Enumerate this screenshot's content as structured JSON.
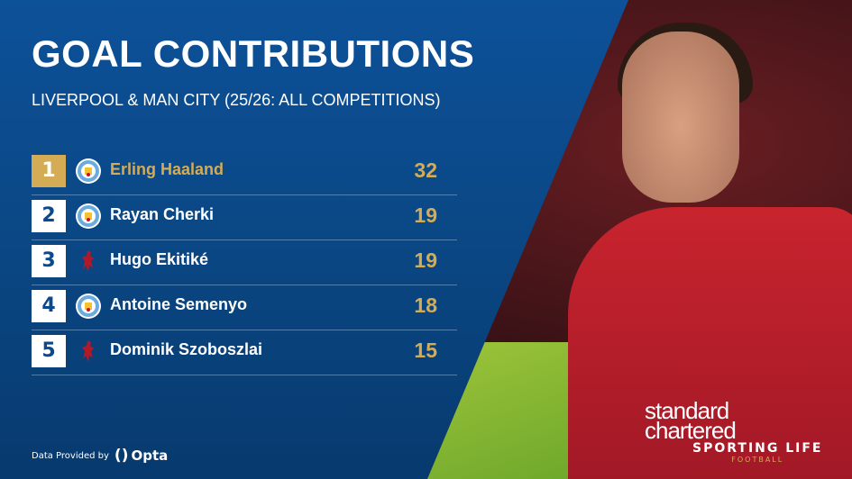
{
  "header": {
    "title": "GOAL CONTRIBUTIONS",
    "subtitle": "LIVERPOOL & MAN CITY (25/26: ALL COMPETITIONS)"
  },
  "rows": [
    {
      "rank": "1",
      "club": "Man City",
      "name": "Erling Haaland",
      "value": "32"
    },
    {
      "rank": "2",
      "club": "Man City",
      "name": "Rayan Cherki",
      "value": "19"
    },
    {
      "rank": "3",
      "club": "Liverpool",
      "name": "Hugo Ekitiké",
      "value": "19"
    },
    {
      "rank": "4",
      "club": "Man City",
      "name": "Antoine Semenyo",
      "value": "18"
    },
    {
      "rank": "5",
      "club": "Liverpool",
      "name": "Dominik Szoboszlai",
      "value": "15"
    }
  ],
  "footer": {
    "data_provided": "Data Provided by",
    "provider": "Opta"
  },
  "brand": {
    "name": "SPORTING LIFE",
    "sub": "FOOTBALL"
  },
  "photo": {
    "sponsor": "standard chartered"
  },
  "colors": {
    "background": "#0a4a8c",
    "accent": "#d4ac55",
    "liverpool": "#c8102e",
    "mancity": "#6cabdd"
  }
}
